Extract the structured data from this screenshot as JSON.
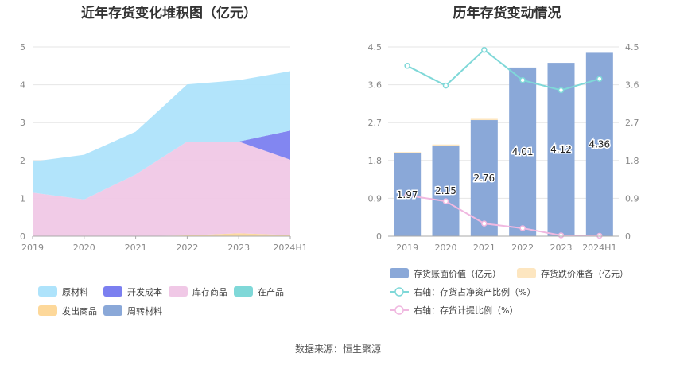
{
  "charts": {
    "left_title": "近年存货变化堆积图（亿元）",
    "right_title": "历年存货变动情况"
  },
  "source": "数据来源：恒生聚源",
  "colors": {
    "raw_material": "#aee3fb",
    "dev_cost": "#7b7ff0",
    "goods_in_stock": "#f0c8e6",
    "wip": "#7fd8d8",
    "goods_shipped": "#fdd89a",
    "turnover": "#8aa8d8",
    "bar": "#8aa8d8",
    "impairment": "#fde6c0",
    "line_ratio": "#7fd8d8",
    "line_provision": "#f0b8e0"
  },
  "chart_data": [
    {
      "type": "area",
      "stacked": true,
      "title": "近年存货变化堆积图（亿元）",
      "x": [
        "2019",
        "2020",
        "2021",
        "2022",
        "2023",
        "2024H1"
      ],
      "ylim": [
        0,
        5
      ],
      "yticks": [
        "0",
        "1",
        "2",
        "3",
        "4",
        "5"
      ],
      "grid": true,
      "legend_position": "bottom",
      "series": [
        {
          "name": "发出商品",
          "key": "goods_shipped",
          "values": [
            0.0,
            0.0,
            0.0,
            0.02,
            0.08,
            0.03
          ]
        },
        {
          "name": "库存商品",
          "key": "goods_in_stock",
          "values": [
            1.15,
            0.97,
            1.63,
            2.48,
            2.42,
            1.99
          ]
        },
        {
          "name": "开发成本",
          "key": "dev_cost",
          "values": [
            0.0,
            0.0,
            0.0,
            0.0,
            0.0,
            0.77
          ]
        },
        {
          "name": "原材料",
          "key": "raw_material",
          "values": [
            0.82,
            1.18,
            1.13,
            1.51,
            1.62,
            1.57
          ]
        },
        {
          "name": "在产品",
          "key": "wip",
          "values": [
            0,
            0,
            0,
            0,
            0,
            0
          ]
        },
        {
          "name": "周转材料",
          "key": "turnover",
          "values": [
            0,
            0,
            0,
            0,
            0,
            0
          ]
        }
      ],
      "legend_order": [
        "原材料",
        "开发成本",
        "库存商品",
        "在产品",
        "发出商品",
        "周转材料"
      ]
    },
    {
      "type": "bar",
      "title": "历年存货变动情况",
      "categories": [
        "2019",
        "2020",
        "2021",
        "2022",
        "2023",
        "2024H1"
      ],
      "ylim": [
        0,
        4.5
      ],
      "yticks": [
        "0",
        "0.9",
        "1.8",
        "2.7",
        "3.6",
        "4.5"
      ],
      "y2ticks": [
        "0",
        "0.9",
        "1.8",
        "2.7",
        "3.6",
        "4.5"
      ],
      "series": [
        {
          "name": "存货账面价值（亿元）",
          "values": [
            1.97,
            2.15,
            2.76,
            4.01,
            4.12,
            4.36
          ],
          "labels": [
            "1.97",
            "2.15",
            "2.76",
            "4.01",
            "4.12",
            "4.36"
          ]
        },
        {
          "name": "存货跌价准备（亿元）",
          "values": [
            0.03,
            0.03,
            0.03,
            0.0,
            0.0,
            0.0
          ]
        }
      ],
      "lines": [
        {
          "name": "右轴：存货占净资产比例（%）",
          "axis": "right",
          "values": [
            4.05,
            3.58,
            4.43,
            3.71,
            3.47,
            3.74
          ]
        },
        {
          "name": "右轴：存货计提比例（%）",
          "axis": "right",
          "values": [
            0.97,
            0.83,
            0.3,
            0.19,
            0.02,
            0.01
          ]
        }
      ],
      "grid": true,
      "legend_position": "bottom"
    }
  ]
}
